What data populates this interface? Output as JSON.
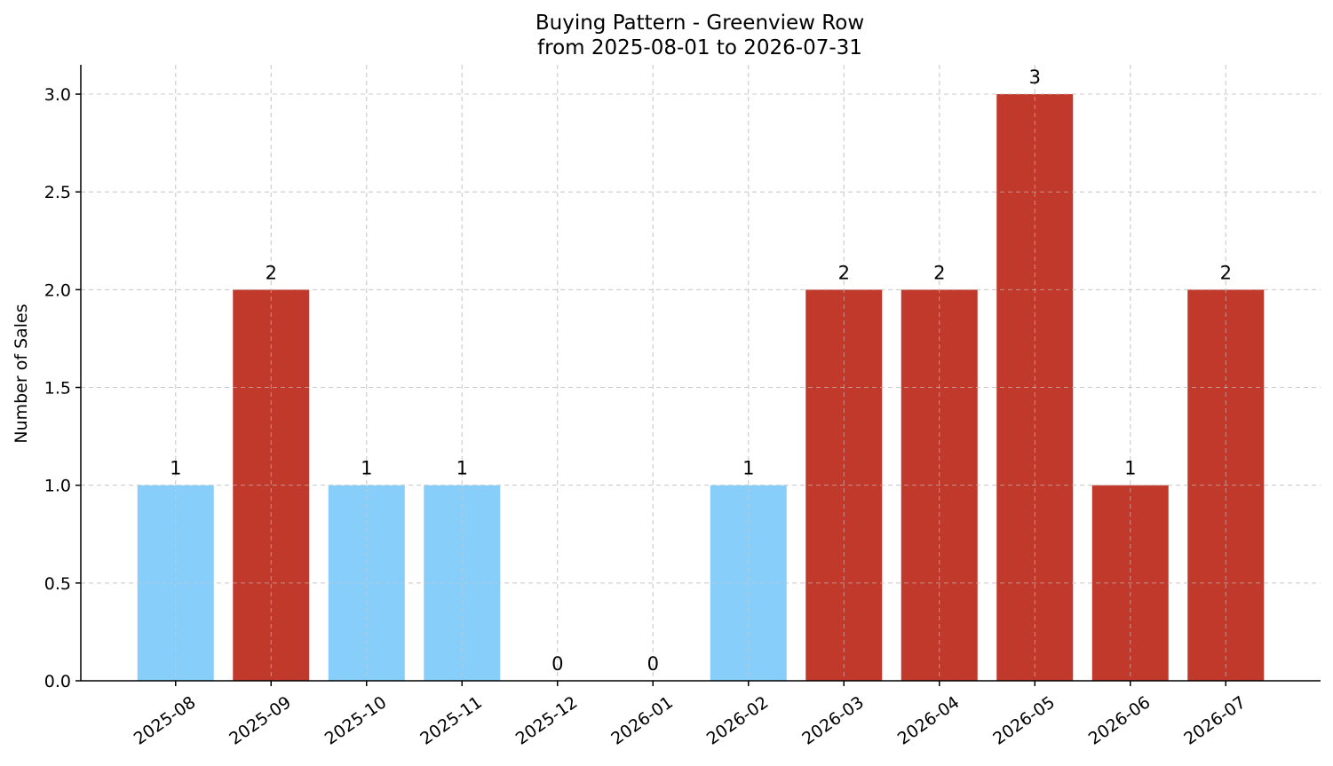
{
  "chart_data": {
    "type": "bar",
    "title": "Buying Pattern - Greenview Row",
    "subtitle": "from 2025-08-01 to 2026-07-31",
    "xlabel": "",
    "ylabel": "Number of Sales",
    "categories": [
      "2025-08",
      "2025-09",
      "2025-10",
      "2025-11",
      "2025-12",
      "2026-01",
      "2026-02",
      "2026-03",
      "2026-04",
      "2026-05",
      "2026-06",
      "2026-07"
    ],
    "values": [
      1,
      2,
      1,
      1,
      0,
      0,
      1,
      2,
      2,
      3,
      1,
      2
    ],
    "data_labels": [
      "1",
      "2",
      "1",
      "1",
      "0",
      "0",
      "1",
      "2",
      "2",
      "3",
      "1",
      "2"
    ],
    "bar_colors": [
      "#87cefa",
      "#c0392b",
      "#87cefa",
      "#87cefa",
      "#87cefa",
      "#87cefa",
      "#87cefa",
      "#c0392b",
      "#c0392b",
      "#c0392b",
      "#c0392b",
      "#c0392b"
    ],
    "ylim": [
      0,
      3.15
    ],
    "yticks": [
      0,
      0.5,
      1,
      1.5,
      2,
      2.5,
      3
    ],
    "ytick_labels": [
      "0.0",
      "0.5",
      "1.0",
      "1.5",
      "2.0",
      "2.5",
      "3.0"
    ],
    "grid": true,
    "legend": false
  }
}
